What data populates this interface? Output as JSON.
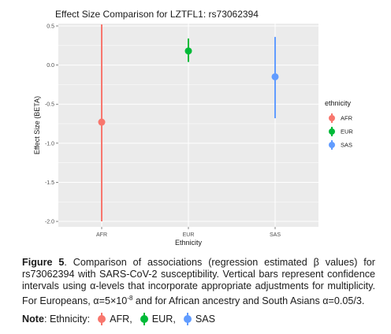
{
  "chart_data": {
    "type": "scatter",
    "title": "Effect Size Comparison for LZTFL1: rs73062394",
    "xlabel": "Ethnicity",
    "ylabel": "Effect Size (BETA)",
    "categories": [
      "AFR",
      "EUR",
      "SAS"
    ],
    "ylim": [
      -2.07,
      0.53
    ],
    "yticks": [
      "0.5",
      "0.0",
      "-0.5",
      "-1.0",
      "-1.5",
      "-2.0"
    ],
    "ytick_values": [
      0.5,
      0.0,
      -0.5,
      -1.0,
      -1.5,
      -2.0
    ],
    "grid": true,
    "legend_title": "ethnicity",
    "legend_position": "right",
    "series": [
      {
        "name": "AFR",
        "category": "AFR",
        "y": -0.73,
        "ci_low": -2.0,
        "ci_high": 0.52,
        "color": "#F8766D"
      },
      {
        "name": "EUR",
        "category": "EUR",
        "y": 0.18,
        "ci_low": 0.04,
        "ci_high": 0.34,
        "color": "#00BA38"
      },
      {
        "name": "SAS",
        "category": "SAS",
        "y": -0.15,
        "ci_low": -0.68,
        "ci_high": 0.36,
        "color": "#619CFF"
      }
    ]
  },
  "caption": {
    "label": "Figure 5",
    "text": ". Comparison of associations (regression estimated β values) for rs73062394 with SARS-CoV-2 susceptibility. Vertical bars represent confidence intervals using α-levels that incorporate appropriate adjustments for multiplicity. For Europeans, α=5×10",
    "exponent": "-8",
    "text_end": " and for African ancestry and South Asians α=0.05/3."
  },
  "note": {
    "label": "Note",
    "prefix": ": Ethnicity:",
    "items": [
      {
        "label": "AFR,",
        "color": "#F8766D"
      },
      {
        "label": "EUR,",
        "color": "#00BA38"
      },
      {
        "label": "SAS",
        "color": "#619CFF"
      }
    ]
  }
}
